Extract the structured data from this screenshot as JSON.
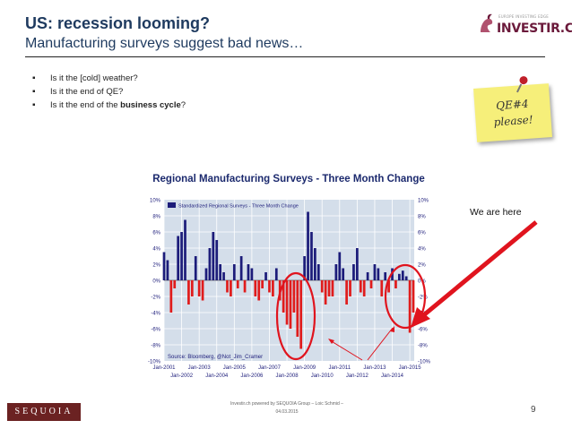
{
  "slide": {
    "title": "US: recession looming?",
    "subtitle": "Manufacturing surveys suggest bad news…",
    "bullets": [
      {
        "text": "Is it the [cold] weather?"
      },
      {
        "text": "Is it the end of QE?"
      },
      {
        "prefix": "Is it the end of the ",
        "bold": "business cycle",
        "suffix": "?"
      }
    ],
    "postit": {
      "line1": "QE#4",
      "line2": "please!"
    },
    "callout": "We are here",
    "logo": {
      "tagline": "EUROPE  INVESTING  EDGE",
      "word": "INVESTIR.CH"
    },
    "footer": {
      "line1": "Investir.ch powered by SEQUOIA Group – Loic Schmid –",
      "line2": "04.03.2015",
      "page_number": "9",
      "brand": "SEQUOIA"
    },
    "colors": {
      "title": "#1e3a5f",
      "positive": "#1c1c7a",
      "negative": "#e01c1c",
      "annotation": "#e0141e"
    }
  },
  "chart_data": {
    "type": "bar",
    "title": "Regional Manufacturing Surveys - Three Month Change",
    "legend": "Standardized Regional Surveys - Three Month Change",
    "legend_position": "top-left",
    "source": "Source: Bloomberg, @Not_Jim_Cramer",
    "ylim": [
      -10,
      10
    ],
    "y_ticks": [
      "10%",
      "8%",
      "6%",
      "4%",
      "2%",
      "0%",
      "-2%",
      "-4%",
      "-6%",
      "-8%",
      "-10%"
    ],
    "y_tick_values": [
      10,
      8,
      6,
      4,
      2,
      0,
      -2,
      -4,
      -6,
      -8,
      -10
    ],
    "x_ticks_upper": [
      "Jan-2001",
      "Jan-2003",
      "Jan-2005",
      "Jan-2007",
      "Jan-2009",
      "Jan-2011",
      "Jan-2013",
      "Jan-2015"
    ],
    "x_ticks_lower": [
      "Jan-2002",
      "Jan-2004",
      "Jan-2006",
      "Jan-2008",
      "Jan-2010",
      "Jan-2012",
      "Jan-2014"
    ],
    "x_start": 2001.0,
    "x_end": 2015.25,
    "grid": true,
    "series": [
      {
        "name": "Standardized Regional Surveys - Three Month Change",
        "x": [
          2001.0,
          2001.2,
          2001.4,
          2001.6,
          2001.8,
          2002.0,
          2002.2,
          2002.4,
          2002.6,
          2002.8,
          2003.0,
          2003.2,
          2003.4,
          2003.6,
          2003.8,
          2004.0,
          2004.2,
          2004.4,
          2004.6,
          2004.8,
          2005.0,
          2005.2,
          2005.4,
          2005.6,
          2005.8,
          2006.0,
          2006.2,
          2006.4,
          2006.6,
          2006.8,
          2007.0,
          2007.2,
          2007.4,
          2007.6,
          2007.8,
          2008.0,
          2008.2,
          2008.4,
          2008.6,
          2008.8,
          2009.0,
          2009.2,
          2009.4,
          2009.6,
          2009.8,
          2010.0,
          2010.2,
          2010.4,
          2010.6,
          2010.8,
          2011.0,
          2011.2,
          2011.4,
          2011.6,
          2011.8,
          2012.0,
          2012.2,
          2012.4,
          2012.6,
          2012.8,
          2013.0,
          2013.2,
          2013.4,
          2013.6,
          2013.8,
          2014.0,
          2014.2,
          2014.4,
          2014.6,
          2014.8,
          2015.0,
          2015.2
        ],
        "values": [
          3.5,
          2.5,
          -4,
          -1,
          5.5,
          6,
          7.5,
          -3,
          -2,
          3,
          -2,
          -2.5,
          1.5,
          4,
          6,
          5,
          2,
          1,
          -1.5,
          -2,
          2,
          -1,
          3,
          -1.5,
          2,
          1.5,
          -2,
          -2.5,
          -1,
          1,
          -1.5,
          -2,
          1.5,
          -2.5,
          -4,
          -5.5,
          -6,
          -4,
          -7,
          -8.5,
          3,
          8.5,
          6,
          4,
          2,
          -1.5,
          -3,
          -2,
          -2,
          2,
          3.5,
          1.5,
          -3,
          -2,
          2,
          4,
          -1.5,
          -2,
          1,
          -1,
          2,
          1.5,
          -2,
          1,
          -1.5,
          1.5,
          -1,
          0.8,
          1.2,
          0.5,
          -6.5,
          -4
        ]
      }
    ]
  }
}
